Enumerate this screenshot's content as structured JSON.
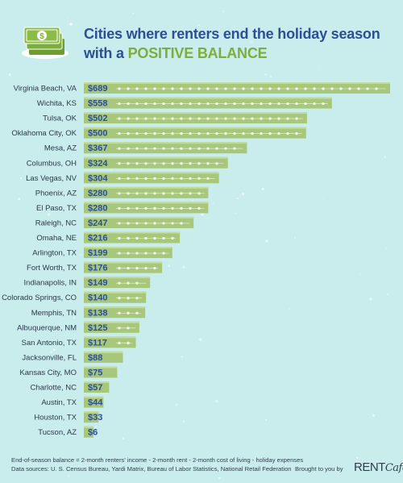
{
  "header": {
    "title_line1": "Cities where renters end the holiday season",
    "title_line2_prefix": "with a ",
    "title_line2_accent": "POSITIVE BALANCE",
    "icon": "money-stack-icon"
  },
  "colors": {
    "background": "#c9ecec",
    "bar": "#a7c87a",
    "bar_light": "#c3dc9e",
    "title": "#2d4f94",
    "accent": "#7cae3a",
    "value_text": "#2d4f94"
  },
  "chart_data": {
    "type": "bar",
    "orientation": "horizontal",
    "categories": [
      "Virginia Beach, VA",
      "Wichita, KS",
      "Tulsa, OK",
      "Oklahoma City, OK",
      "Mesa, AZ",
      "Columbus, OH",
      "Las Vegas, NV",
      "Phoenix, AZ",
      "El Paso, TX",
      "Raleigh, NC",
      "Omaha, NE",
      "Arlington, TX",
      "Fort Worth, TX",
      "Indianapolis, IN",
      "Colorado Springs, CO",
      "Memphis, TN",
      "Albuquerque, NM",
      "San Antonio, TX",
      "Jacksonville, FL",
      "Kansas City, MO",
      "Charlotte, NC",
      "Austin, TX",
      "Houston, TX",
      "Tucson, AZ"
    ],
    "values": [
      689,
      558,
      502,
      500,
      367,
      324,
      304,
      280,
      280,
      247,
      216,
      199,
      176,
      149,
      140,
      138,
      125,
      117,
      88,
      75,
      57,
      44,
      33,
      6
    ],
    "labels": [
      "$689",
      "$558",
      "$502",
      "$500",
      "$367",
      "$324",
      "$304",
      "$280",
      "$280",
      "$247",
      "$216",
      "$199",
      "$176",
      "$149",
      "$140",
      "$138",
      "$125",
      "$117",
      "$88",
      "$75",
      "$57",
      "$44",
      "$33",
      "$6"
    ],
    "grid": false,
    "legend": "none"
  },
  "footer": {
    "note_line1": "End-of-season balance = 2-month renters' income - 2-month rent - 2-month cost of living - holiday expenses",
    "note_line2": "Data sources: U. S. Census Bureau, Yardi Matrix, Bureau of Labor Statistics, National Retail Federation",
    "brought_by": "Brought to you by",
    "brand_main": "RENT",
    "brand_suffix": "Café"
  }
}
